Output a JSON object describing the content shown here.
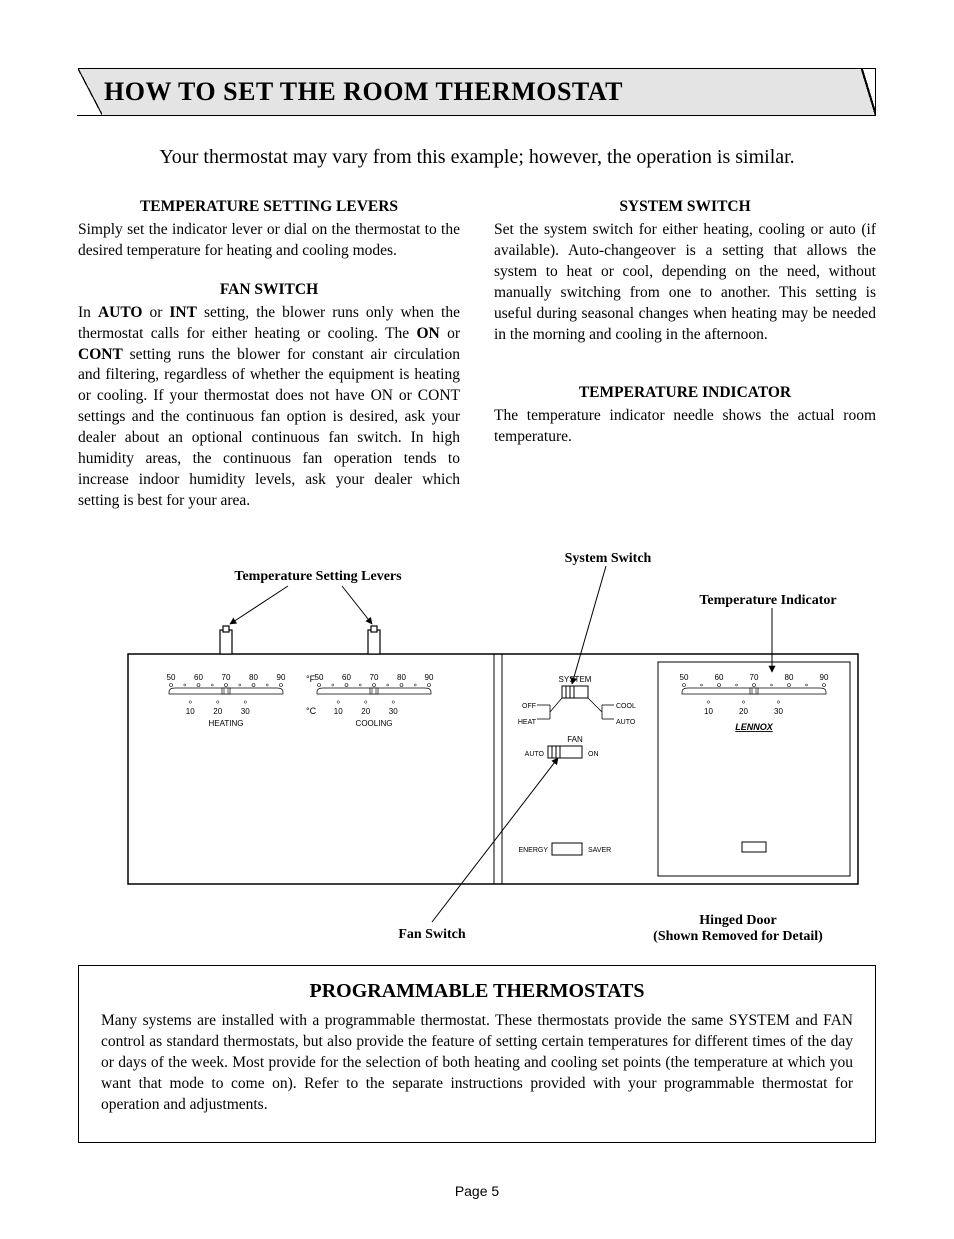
{
  "title": "HOW TO SET THE ROOM THERMOSTAT",
  "intro": "Your thermostat may vary from this example; however, the operation is similar.",
  "sections": {
    "temp_levers": {
      "heading": "TEMPERATURE SETTING LEVERS",
      "body": "Simply set the indicator lever or dial on the thermostat to the desired temperature for heating and cooling modes."
    },
    "fan_switch": {
      "heading": "FAN SWITCH",
      "body_prefix": "In ",
      "b1": "AUTO",
      "mid1": " or ",
      "b2": "INT",
      "mid2": " setting, the blower runs only when the thermostat calls for either heating or cooling. The ",
      "b3": "ON",
      "mid3": " or ",
      "b4": "CONT",
      "body_suffix": " setting runs the blower for constant air circulation and filtering, regardless of whether the equipment is heating or cooling.  If your thermostat does not have ON or CONT settings and the continuous fan option is desired, ask your dealer about an optional continuous fan switch. In high humidity areas, the continuous fan operation tends to increase indoor humidity levels, ask your dealer which setting is best for your area."
    },
    "system_switch": {
      "heading": "SYSTEM SWITCH",
      "body": "Set the system switch for either heating, cooling or auto (if available). Auto-changeover is a setting that allows the system to heat or cool, depending on the need, without manually switching from one to another. This setting is useful during seasonal changes when heating may be needed in the morning and cooling in the afternoon."
    },
    "temp_indicator": {
      "heading": "TEMPERATURE INDICATOR",
      "body": "The temperature indicator needle shows the actual room temperature."
    }
  },
  "diagram": {
    "labels": {
      "temp_levers": "Temperature Setting Levers",
      "system_switch": "System Switch",
      "temp_indicator": "Temperature Indicator",
      "fan_switch": "Fan Switch",
      "hinged_door_1": "Hinged Door",
      "hinged_door_2": "(Shown Removed for Detail)"
    },
    "scale_f": [
      "50",
      "60",
      "70",
      "80",
      "90"
    ],
    "scale_c": [
      "10",
      "20",
      "30"
    ],
    "unit_f": "°F",
    "unit_c": "°C",
    "zone_heating": "HEATING",
    "zone_cooling": "COOLING",
    "system_text": "SYSTEM",
    "off": "OFF",
    "cool": "COOL",
    "heat": "HEAT",
    "auto": "AUTO",
    "fan": "FAN",
    "on": "ON",
    "auto2": "AUTO",
    "energy": "ENERGY",
    "saver": "SAVER",
    "brand": "LENNOX",
    "colors": {
      "stroke": "#000000",
      "bg": "#ffffff"
    }
  },
  "programmable": {
    "heading": "PROGRAMMABLE THERMOSTATS",
    "body": "Many systems are installed with a programmable thermostat. These thermostats provide the same SYSTEM and FAN control as standard thermostats, but also provide the feature of setting certain temperatures for different times of the day or days of the week. Most provide for the selection of  both heating and cooling set points (the temperature at which you want that mode to come on). Refer to the separate instructions provided with your programmable thermostat for operation and adjustments."
  },
  "page_number": "Page 5"
}
